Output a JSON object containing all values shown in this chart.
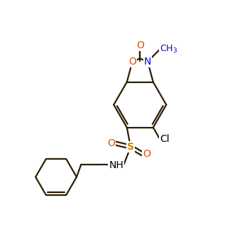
{
  "background_color": "#ffffff",
  "bond_color": "#2a2000",
  "atom_colors": {
    "O": "#e05000",
    "N": "#0000cc",
    "S": "#cc8800",
    "Cl": "#000000"
  },
  "line_width": 1.6,
  "font_size": 10,
  "figsize": [
    3.17,
    3.2
  ],
  "dpi": 100,
  "xlim": [
    0,
    8.5
  ],
  "ylim": [
    0,
    9.0
  ]
}
